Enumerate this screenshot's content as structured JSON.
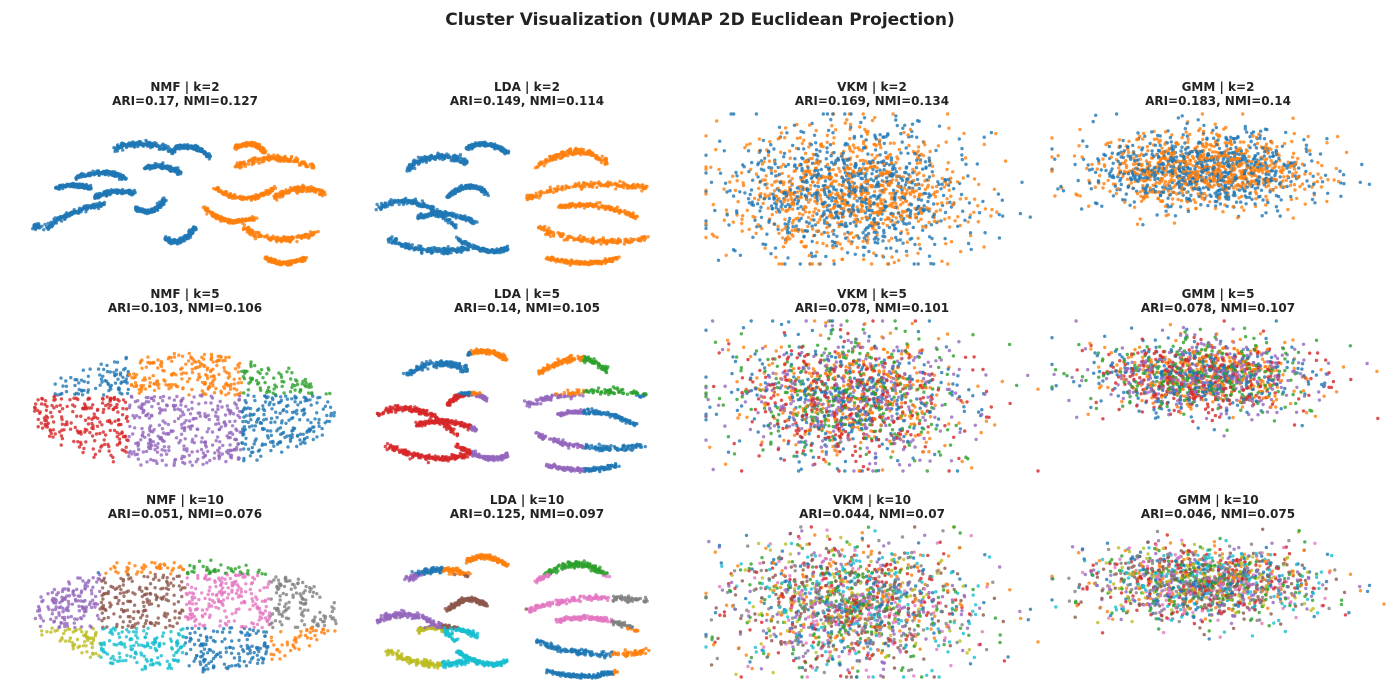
{
  "title": "Cluster Visualization (UMAP 2D Euclidean Projection)",
  "colors": [
    "#1f77b4",
    "#ff7f0e",
    "#2ca02c",
    "#d62728",
    "#9467bd",
    "#8c564b",
    "#e377c2",
    "#7f7f7f",
    "#bcbd22",
    "#17becf"
  ],
  "chart_data": [
    {
      "type": "scatter",
      "method": "NMF",
      "k": 2,
      "title": "NMF | k=2",
      "subtitle": "ARI=0.17, NMI=0.127",
      "ari": 0.17,
      "nmi": 0.127,
      "shape": "nmf",
      "legend": "none",
      "grid": false
    },
    {
      "type": "scatter",
      "method": "LDA",
      "k": 2,
      "title": "LDA | k=2",
      "subtitle": "ARI=0.149, NMI=0.114",
      "ari": 0.149,
      "nmi": 0.114,
      "shape": "lda",
      "legend": "none",
      "grid": false
    },
    {
      "type": "scatter",
      "method": "VKM",
      "k": 2,
      "title": "VKM | k=2",
      "subtitle": "ARI=0.169, NMI=0.134",
      "ari": 0.169,
      "nmi": 0.134,
      "shape": "vkm",
      "legend": "none",
      "grid": false
    },
    {
      "type": "scatter",
      "method": "GMM",
      "k": 2,
      "title": "GMM | k=2",
      "subtitle": "ARI=0.183, NMI=0.14",
      "ari": 0.183,
      "nmi": 0.14,
      "shape": "gmm",
      "legend": "none",
      "grid": false
    },
    {
      "type": "scatter",
      "method": "NMF",
      "k": 5,
      "title": "NMF | k=5",
      "subtitle": "ARI=0.103, NMI=0.106",
      "ari": 0.103,
      "nmi": 0.106,
      "shape": "nmf",
      "legend": "none",
      "grid": false
    },
    {
      "type": "scatter",
      "method": "LDA",
      "k": 5,
      "title": "LDA | k=5",
      "subtitle": "ARI=0.14, NMI=0.105",
      "ari": 0.14,
      "nmi": 0.105,
      "shape": "lda",
      "legend": "none",
      "grid": false
    },
    {
      "type": "scatter",
      "method": "VKM",
      "k": 5,
      "title": "VKM | k=5",
      "subtitle": "ARI=0.078, NMI=0.101",
      "ari": 0.078,
      "nmi": 0.101,
      "shape": "vkm",
      "legend": "none",
      "grid": false
    },
    {
      "type": "scatter",
      "method": "GMM",
      "k": 5,
      "title": "GMM | k=5",
      "subtitle": "ARI=0.078, NMI=0.107",
      "ari": 0.078,
      "nmi": 0.107,
      "shape": "gmm",
      "legend": "none",
      "grid": false
    },
    {
      "type": "scatter",
      "method": "NMF",
      "k": 10,
      "title": "NMF | k=10",
      "subtitle": "ARI=0.051, NMI=0.076",
      "ari": 0.051,
      "nmi": 0.076,
      "shape": "nmf",
      "legend": "none",
      "grid": false
    },
    {
      "type": "scatter",
      "method": "LDA",
      "k": 10,
      "title": "LDA | k=10",
      "subtitle": "ARI=0.125, NMI=0.097",
      "ari": 0.125,
      "nmi": 0.097,
      "shape": "lda",
      "legend": "none",
      "grid": false
    },
    {
      "type": "scatter",
      "method": "VKM",
      "k": 10,
      "title": "VKM | k=10",
      "subtitle": "ARI=0.044, NMI=0.07",
      "ari": 0.044,
      "nmi": 0.07,
      "shape": "vkm",
      "legend": "none",
      "grid": false
    },
    {
      "type": "scatter",
      "method": "GMM",
      "k": 10,
      "title": "GMM | k=10",
      "subtitle": "ARI=0.046, NMI=0.075",
      "ari": 0.046,
      "nmi": 0.075,
      "shape": "gmm",
      "legend": "none",
      "grid": false
    }
  ]
}
